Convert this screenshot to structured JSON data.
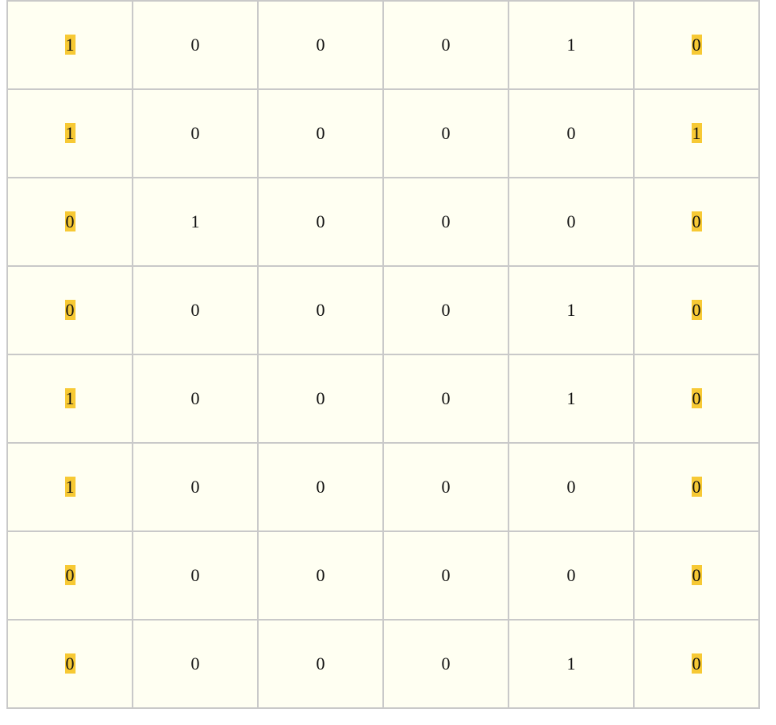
{
  "grid": {
    "highlight_color": "#f7c934",
    "cell_background": "#fffff2",
    "border_color": "#c9c9c9",
    "highlighted_columns": [
      0,
      5
    ],
    "rows": [
      [
        "1",
        "0",
        "0",
        "0",
        "1",
        "0"
      ],
      [
        "1",
        "0",
        "0",
        "0",
        "0",
        "1"
      ],
      [
        "0",
        "1",
        "0",
        "0",
        "0",
        "0"
      ],
      [
        "0",
        "0",
        "0",
        "0",
        "1",
        "0"
      ],
      [
        "1",
        "0",
        "0",
        "0",
        "1",
        "0"
      ],
      [
        "1",
        "0",
        "0",
        "0",
        "0",
        "0"
      ],
      [
        "0",
        "0",
        "0",
        "0",
        "0",
        "0"
      ],
      [
        "0",
        "0",
        "0",
        "0",
        "1",
        "0"
      ]
    ]
  }
}
